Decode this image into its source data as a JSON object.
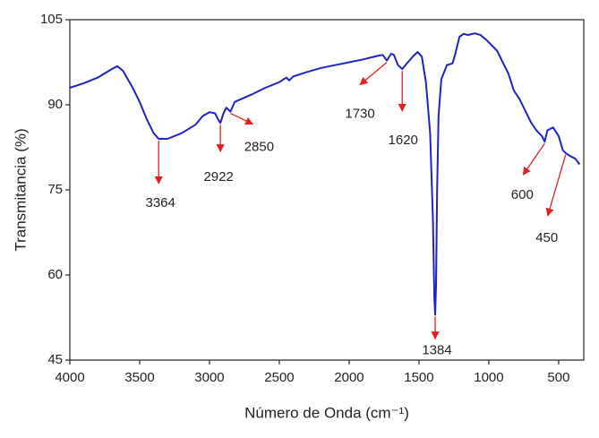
{
  "chart_data": {
    "type": "line",
    "y_label": "Transmitancia (%)",
    "x_label": "Número de Onda (cm⁻¹)",
    "xlim": [
      4000,
      320
    ],
    "ylim": [
      45,
      105
    ],
    "xticks": [
      4000,
      3500,
      3000,
      2500,
      2000,
      1500,
      1000,
      500
    ],
    "yticks": [
      45,
      60,
      75,
      90,
      105
    ],
    "grid": false,
    "series": [
      {
        "color": "#1f22c4",
        "x": [
          4000,
          3900,
          3800,
          3700,
          3660,
          3620,
          3550,
          3500,
          3450,
          3400,
          3364,
          3300,
          3200,
          3100,
          3050,
          3000,
          2960,
          2940,
          2922,
          2900,
          2880,
          2850,
          2820,
          2700,
          2600,
          2500,
          2450,
          2430,
          2400,
          2300,
          2200,
          2100,
          2000,
          1900,
          1800,
          1760,
          1730,
          1700,
          1680,
          1650,
          1620,
          1590,
          1540,
          1510,
          1480,
          1450,
          1420,
          1400,
          1390,
          1384,
          1378,
          1370,
          1360,
          1340,
          1300,
          1260,
          1240,
          1210,
          1180,
          1150,
          1100,
          1060,
          1020,
          980,
          940,
          900,
          860,
          820,
          780,
          740,
          700,
          660,
          620,
          600,
          580,
          540,
          500,
          470,
          450,
          420,
          380,
          350
        ],
        "values": [
          93,
          93.8,
          94.8,
          96.3,
          96.8,
          96,
          93,
          90.5,
          87.5,
          85,
          84,
          84,
          85,
          86.5,
          88,
          88.7,
          88.5,
          87.5,
          86.8,
          88.5,
          89.5,
          88.8,
          90.5,
          91.8,
          93,
          94,
          94.8,
          94.3,
          95,
          95.8,
          96.5,
          97,
          97.5,
          98,
          98.6,
          98.8,
          97.8,
          99,
          98.8,
          97,
          96.3,
          97.2,
          98.6,
          99.3,
          98.5,
          94,
          85,
          70,
          56,
          53,
          58,
          75,
          88,
          94.5,
          97,
          97.3,
          99,
          102,
          102.5,
          102.3,
          102.6,
          102.3,
          101.5,
          100.5,
          99.5,
          97.5,
          95.5,
          92.5,
          91,
          89,
          87,
          85.5,
          84.5,
          83.5,
          85.5,
          86,
          84.5,
          82,
          81.5,
          81,
          80.5,
          79.5
        ]
      }
    ],
    "annotations": [
      {
        "text": "3364",
        "x": 3364,
        "y": 84
      },
      {
        "text": "2922",
        "x": 2922,
        "y": 86.8
      },
      {
        "text": "2850",
        "x": 2850,
        "y": 88.8
      },
      {
        "text": "1730",
        "x": 1730,
        "y": 97.8
      },
      {
        "text": "1620",
        "x": 1620,
        "y": 96.3
      },
      {
        "text": "1384",
        "x": 1384,
        "y": 53
      },
      {
        "text": "600",
        "x": 600,
        "y": 83.5
      },
      {
        "text": "450",
        "x": 450,
        "y": 81.5
      }
    ]
  }
}
